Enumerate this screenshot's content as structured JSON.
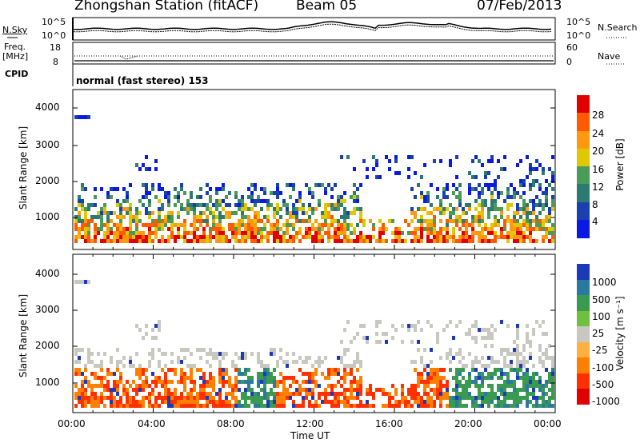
{
  "header": {
    "station": "Zhongshan Station (fitACF)",
    "beam": "Beam 05",
    "date": "07/Feb/2013"
  },
  "top_panels": {
    "nsky_label": "N.Sky",
    "nsearch_label": "N.Search",
    "nsky_ticks": [
      "10^5",
      "10^0"
    ],
    "nsearch_ticks": [
      "10^5",
      "10^0"
    ],
    "freq_label": "Freq.",
    "freq_unit": "[MHz]",
    "freq_ticks": [
      "18",
      "8"
    ],
    "nave_label": "Nave",
    "nave_ticks": [
      "60",
      "0"
    ],
    "cpid_label": "CPID",
    "cpid_value": "normal (fast stereo) 153"
  },
  "chart_data": [
    {
      "type": "heatmap",
      "name": "power",
      "ylabel": "Slant Range [km]",
      "yticks": [
        "4000",
        "3000",
        "2000",
        "1000"
      ],
      "ylim": [
        200,
        4600
      ],
      "colorbar_label": "Power [dB]",
      "colorbar_ticks": [
        "28",
        "24",
        "20",
        "16",
        "12",
        "8",
        "4"
      ],
      "colorbar_colors": [
        "#e00000",
        "#ff5a00",
        "#ff9a10",
        "#e0c800",
        "#4a9a58",
        "#2c7a70",
        "#1a40b0",
        "#0a1ae0"
      ]
    },
    {
      "type": "heatmap",
      "name": "velocity",
      "ylabel": "Slant Range [km]",
      "yticks": [
        "4000",
        "3000",
        "2000",
        "1000"
      ],
      "ylim": [
        200,
        4600
      ],
      "colorbar_label": "Velocity [m s⁻¹]",
      "colorbar_ticks": [
        "1000",
        "500",
        "100",
        "25",
        "-25",
        "-100",
        "-500",
        "-1000"
      ],
      "colorbar_colors": [
        "#1a3ab8",
        "#2a7aa0",
        "#3a9a50",
        "#70c040",
        "#c8c8c0",
        "#ffb040",
        "#ff8000",
        "#ff3000",
        "#e00000"
      ]
    }
  ],
  "time_axis": {
    "xlabel": "Time UT",
    "ticks": [
      "00:00",
      "04:00",
      "08:00",
      "12:00",
      "16:00",
      "20:00",
      "00:00"
    ]
  }
}
